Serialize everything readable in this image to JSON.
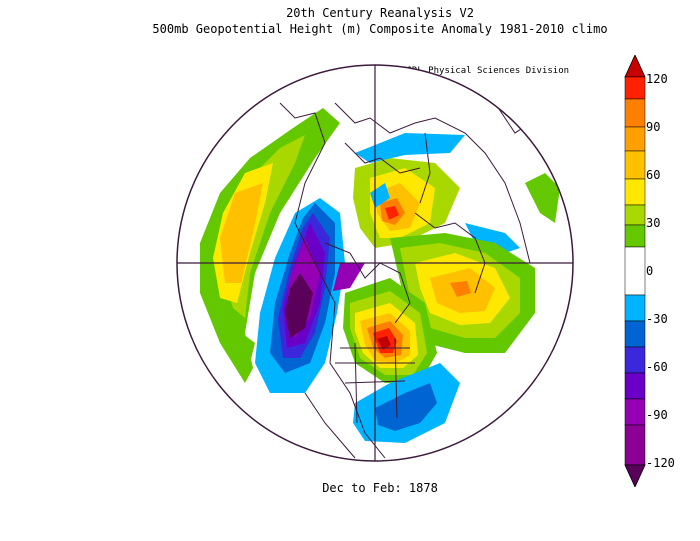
{
  "header": {
    "line1": "20th Century Reanalysis V2",
    "line2": "500mb Geopotential Height (m) Composite Anomaly 1981-2010 climo",
    "credit": "NOAA/ESRL Physical Sciences Division"
  },
  "footer": {
    "period": "Dec to Feb: 1878"
  },
  "colorbar": {
    "labels": [
      "120",
      "90",
      "60",
      "30",
      "0",
      "-30",
      "-60",
      "-90",
      "-120"
    ],
    "colors": [
      "#ff2200",
      "#ff7f00",
      "#ffc000",
      "#ffe800",
      "#a8d800",
      "#64c800",
      "#ffffff",
      "#00b4ff",
      "#0064d2",
      "#3c28dc",
      "#6a00c8",
      "#9600b4",
      "#5a005a"
    ]
  },
  "map": {
    "projection": "north-polar-stereographic",
    "center_crosshair": true
  }
}
